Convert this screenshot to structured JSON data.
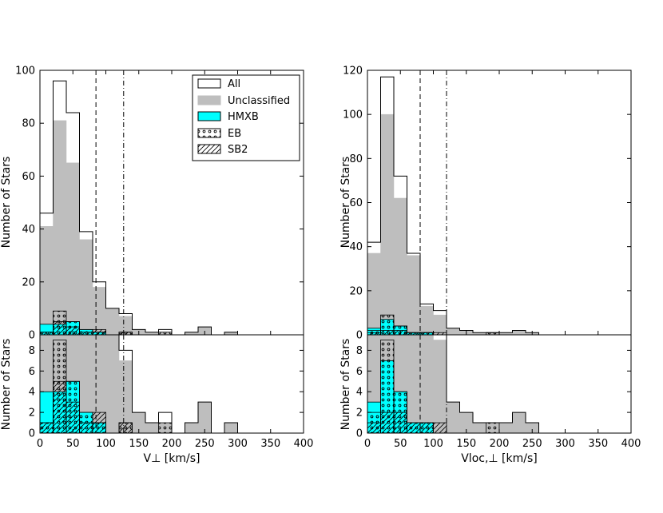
{
  "legend": {
    "all": "All",
    "unclassified": "Unclassified",
    "hmxb": "HMXB",
    "eb": "EB",
    "sb2": "SB2"
  },
  "colors": {
    "unclassified": "#bebebe",
    "hmxb": "#00ffff",
    "outline": "#000000"
  },
  "chart_data": [
    {
      "type": "bar",
      "title": "",
      "xlabel": "V⊥ [km/s]",
      "ylabel": "Number of Stars",
      "bin_edges": [
        0,
        20,
        40,
        60,
        80,
        100,
        120,
        140,
        160,
        180,
        200,
        220,
        240,
        260,
        280,
        300,
        320,
        340,
        360,
        380
      ],
      "xlim": [
        0,
        400
      ],
      "top_ylim": [
        0,
        100
      ],
      "top_yticks": [
        0,
        20,
        40,
        60,
        80,
        100
      ],
      "bottom_ylim": [
        0,
        9.5
      ],
      "bottom_yticks": [
        0,
        2,
        4,
        6,
        8
      ],
      "xticks": [
        0,
        50,
        100,
        150,
        200,
        250,
        300,
        350,
        400
      ],
      "vlines": [
        {
          "x": 85,
          "style": "dashed"
        },
        {
          "x": 127,
          "style": "dashdot"
        }
      ],
      "series": [
        {
          "name": "All",
          "values": [
            46,
            96,
            84,
            39,
            20,
            10,
            8,
            2,
            1,
            2,
            0,
            1,
            3,
            0,
            1,
            0,
            0,
            0,
            0
          ]
        },
        {
          "name": "Unclassified",
          "values": [
            41,
            81,
            65,
            36,
            18,
            10,
            7,
            2,
            1,
            1,
            0,
            1,
            3,
            0,
            1,
            0,
            0,
            0,
            0
          ]
        },
        {
          "name": "HMXB",
          "values": [
            4,
            4,
            5,
            2,
            1,
            0,
            0,
            0,
            0,
            0,
            0,
            0,
            0,
            0,
            0,
            0,
            0,
            0,
            0
          ]
        },
        {
          "name": "EB",
          "values": [
            1,
            9,
            5,
            2,
            1,
            0,
            1,
            0,
            0,
            1,
            0,
            0,
            0,
            0,
            0,
            0,
            0,
            0,
            0
          ]
        },
        {
          "name": "SB2",
          "values": [
            1,
            5,
            3,
            1,
            2,
            0,
            1,
            0,
            0,
            0,
            0,
            0,
            0,
            0,
            0,
            0,
            0,
            0,
            0
          ]
        }
      ]
    },
    {
      "type": "bar",
      "title": "",
      "xlabel": "Vloc,⊥ [km/s]",
      "ylabel": "Number of Stars",
      "bin_edges": [
        0,
        20,
        40,
        60,
        80,
        100,
        120,
        140,
        160,
        180,
        200,
        220,
        240,
        260,
        280,
        300,
        320,
        340,
        360,
        380
      ],
      "xlim": [
        0,
        400
      ],
      "top_ylim": [
        0,
        120
      ],
      "top_yticks": [
        0,
        20,
        40,
        60,
        80,
        100,
        120
      ],
      "bottom_ylim": [
        0,
        9.5
      ],
      "bottom_yticks": [
        0,
        2,
        4,
        6,
        8
      ],
      "xticks": [
        0,
        50,
        100,
        150,
        200,
        250,
        300,
        350,
        400
      ],
      "vlines": [
        {
          "x": 80,
          "style": "dashed"
        },
        {
          "x": 120,
          "style": "dashdot"
        }
      ],
      "series": [
        {
          "name": "All",
          "values": [
            42,
            117,
            72,
            37,
            14,
            11,
            3,
            2,
            1,
            1,
            1,
            2,
            1,
            0,
            0,
            0,
            0,
            0,
            0
          ]
        },
        {
          "name": "Unclassified",
          "values": [
            37,
            100,
            62,
            36,
            13,
            9,
            3,
            2,
            1,
            1,
            1,
            2,
            1,
            0,
            0,
            0,
            0,
            0,
            0
          ]
        },
        {
          "name": "HMXB",
          "values": [
            3,
            7,
            4,
            1,
            1,
            0,
            0,
            0,
            0,
            0,
            0,
            0,
            0,
            0,
            0,
            0,
            0,
            0,
            0
          ]
        },
        {
          "name": "EB",
          "values": [
            2,
            9,
            4,
            1,
            1,
            0,
            0,
            0,
            0,
            1,
            0,
            0,
            0,
            0,
            0,
            0,
            0,
            0,
            0
          ]
        },
        {
          "name": "SB2",
          "values": [
            1,
            2,
            2,
            1,
            1,
            1,
            0,
            0,
            0,
            0,
            0,
            0,
            0,
            0,
            0,
            0,
            0,
            0,
            0
          ]
        }
      ]
    }
  ]
}
